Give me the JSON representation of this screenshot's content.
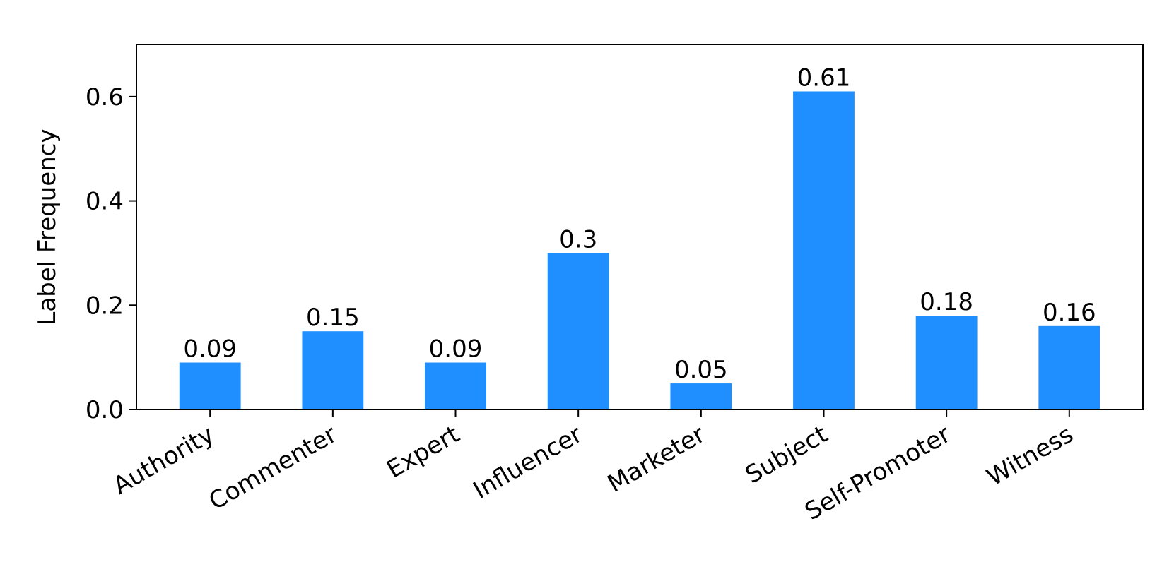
{
  "chart_data": {
    "type": "bar",
    "categories": [
      "Authority",
      "Commenter",
      "Expert",
      "Influencer",
      "Marketer",
      "Subject",
      "Self-Promoter",
      "Witness"
    ],
    "values": [
      0.09,
      0.15,
      0.09,
      0.3,
      0.05,
      0.61,
      0.18,
      0.16
    ],
    "value_labels": [
      "0.09",
      "0.15",
      "0.09",
      "0.3",
      "0.05",
      "0.61",
      "0.18",
      "0.16"
    ],
    "ylabel": "Label Frequency",
    "ylim": [
      0,
      0.7
    ],
    "yticks": [
      0.0,
      0.2,
      0.4,
      0.6
    ],
    "ytick_labels": [
      "0.0",
      "0.2",
      "0.4",
      "0.6"
    ],
    "bar_color": "#1f8fff",
    "grid": false
  }
}
